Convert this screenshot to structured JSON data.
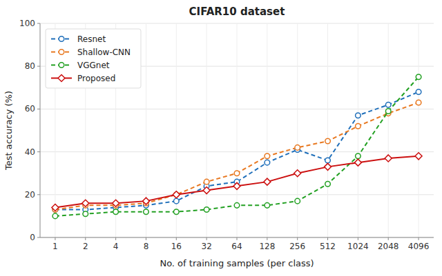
{
  "chart_data": {
    "type": "line",
    "title": "CIFAR10 dataset",
    "xlabel": "No. of training samples (per class)",
    "ylabel": "Test accuracy (%)",
    "categories": [
      "1",
      "2",
      "4",
      "8",
      "16",
      "32",
      "64",
      "128",
      "256",
      "512",
      "1024",
      "2048",
      "4096"
    ],
    "series": [
      {
        "name": "Resnet",
        "color": "#1f6fba",
        "line_style": "dashed",
        "marker": "circle",
        "values": [
          13,
          13,
          14,
          15,
          17,
          24,
          26,
          35,
          41,
          36,
          57,
          62,
          68
        ]
      },
      {
        "name": "Shallow-CNN",
        "color": "#e87820",
        "line_style": "dashed",
        "marker": "circle",
        "values": [
          13,
          15,
          15,
          16,
          20,
          26,
          30,
          38,
          42,
          45,
          52,
          58,
          63
        ]
      },
      {
        "name": "VGGnet",
        "color": "#22a022",
        "line_style": "dashed",
        "marker": "circle",
        "values": [
          10,
          11,
          12,
          12,
          12,
          13,
          15,
          15,
          17,
          25,
          38,
          59,
          75
        ]
      },
      {
        "name": "Proposed",
        "color": "#cc1010",
        "line_style": "solid",
        "marker": "diamond",
        "values": [
          14,
          16,
          16,
          17,
          20,
          22,
          24,
          26,
          30,
          33,
          35,
          37,
          38
        ]
      }
    ],
    "ylim": [
      0,
      100
    ],
    "yticks": [
      0,
      20,
      40,
      60,
      80,
      100
    ],
    "grid": true,
    "legend": "upper left"
  }
}
